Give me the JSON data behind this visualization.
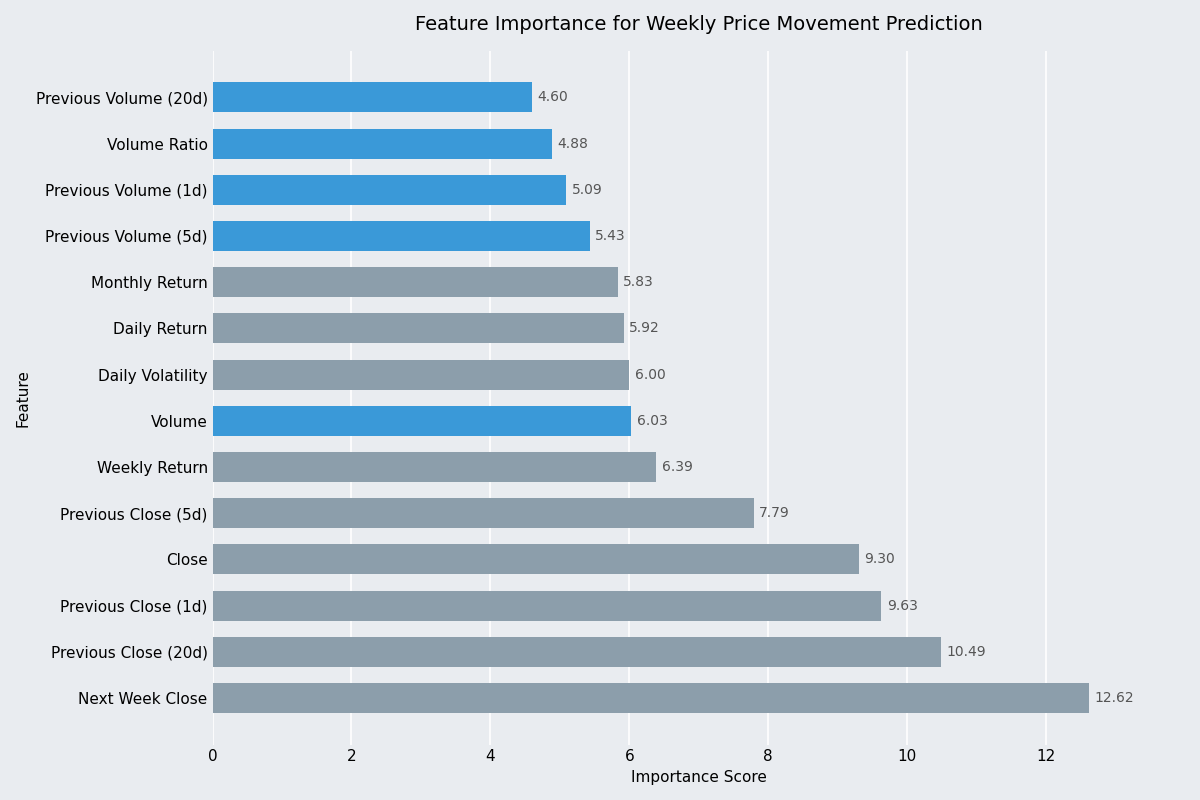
{
  "title": "Feature Importance for Weekly Price Movement Prediction",
  "xlabel": "Importance Score",
  "ylabel": "Feature",
  "features": [
    "Next Week Close",
    "Previous Close (20d)",
    "Previous Close (1d)",
    "Close",
    "Previous Close (5d)",
    "Weekly Return",
    "Volume",
    "Daily Volatility",
    "Daily Return",
    "Monthly Return",
    "Previous Volume (5d)",
    "Previous Volume (1d)",
    "Volume Ratio",
    "Previous Volume (20d)"
  ],
  "values": [
    12.62,
    10.49,
    9.63,
    9.3,
    7.79,
    6.39,
    6.03,
    6.0,
    5.92,
    5.83,
    5.43,
    5.09,
    4.88,
    4.6
  ],
  "is_volume": [
    false,
    false,
    false,
    false,
    false,
    false,
    true,
    false,
    false,
    false,
    true,
    true,
    true,
    true
  ],
  "volume_color": "#3A99D8",
  "default_color": "#8C9EAB",
  "background_color": "#E9ECF0",
  "axes_background": "#E9ECF0",
  "title_fontsize": 14,
  "label_fontsize": 11,
  "tick_fontsize": 11,
  "value_fontsize": 10,
  "bar_height": 0.65,
  "xlim": [
    0,
    14
  ],
  "xticks": [
    0,
    2,
    4,
    6,
    8,
    10,
    12
  ],
  "grid_color": "#FFFFFF",
  "value_color": "#555555"
}
